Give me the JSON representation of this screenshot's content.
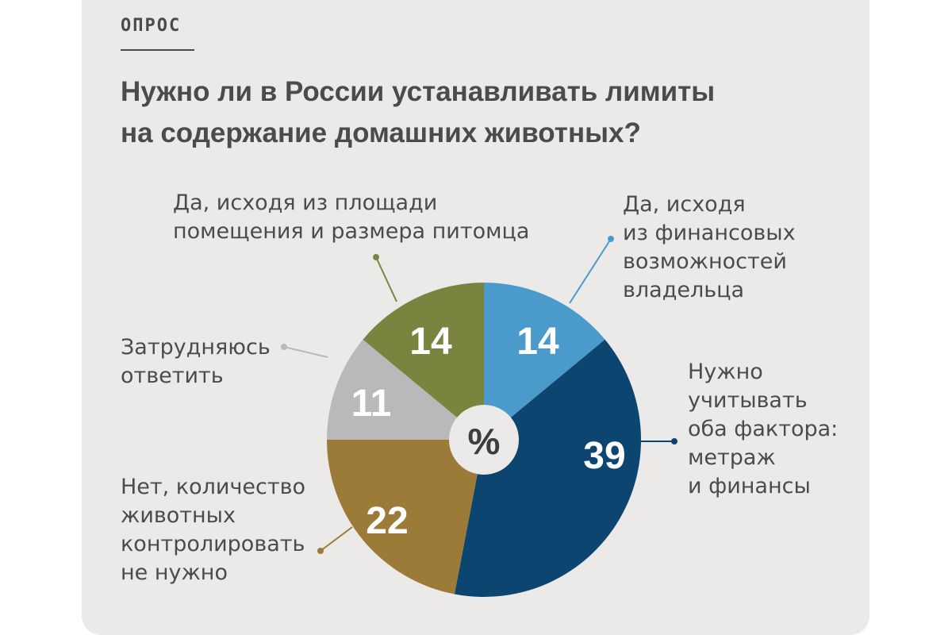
{
  "header": {
    "kicker": "ОПРОС",
    "title_lines": [
      "Нужно ли в России устанавливать лимиты",
      "на содержание домашних животных?"
    ]
  },
  "center_label": "%",
  "colors": {
    "background": "#ebeae8",
    "text": "#4a4c4c",
    "light_blue": "#4a9bcb",
    "dark_blue": "#0c4670",
    "ochre": "#9c7a37",
    "gray": "#b9b9b9",
    "olive": "#7a843e"
  },
  "chart_data": {
    "type": "pie",
    "unit": "%",
    "slices": [
      {
        "label_lines": [
          "Да, исходя",
          "из финансовых",
          "возможностей",
          "владельца"
        ],
        "value": 14,
        "color": "#4a9bcb"
      },
      {
        "label_lines": [
          "Нужно",
          "учитывать",
          "оба фактора:",
          "метраж",
          "и финансы"
        ],
        "value": 39,
        "color": "#0c4670"
      },
      {
        "label_lines": [
          "Нет, количество",
          "животных",
          "контролировать",
          "не нужно"
        ],
        "value": 22,
        "color": "#9c7a37"
      },
      {
        "label_lines": [
          "Затрудняюсь",
          "ответить"
        ],
        "value": 11,
        "color": "#b9b9b9"
      },
      {
        "label_lines": [
          "Да, исходя из площади",
          "помещения и размера питомца"
        ],
        "value": 14,
        "color": "#7a843e"
      }
    ]
  }
}
